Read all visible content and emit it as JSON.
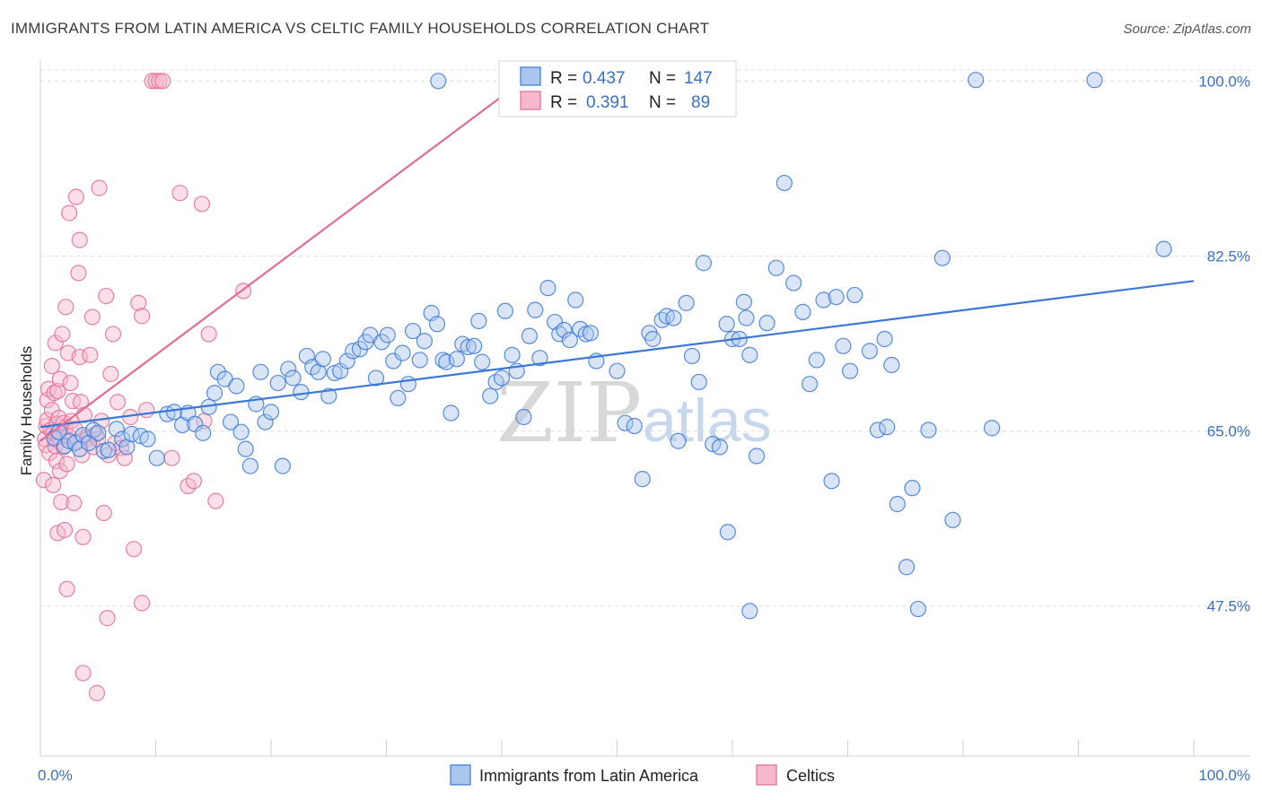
{
  "title": "IMMIGRANTS FROM LATIN AMERICA VS CELTIC FAMILY HOUSEHOLDS CORRELATION CHART",
  "source": "Source: ZipAtlas.com",
  "watermark": {
    "part1": "ZIP",
    "part2": "atlas"
  },
  "colors": {
    "blue": "#3b78d6",
    "blue_fill": "#aac6ee",
    "pink": "#e06c96",
    "pink_fill": "#f6b8cc",
    "tick": "#3b6fc6",
    "grid": "#dddddd"
  },
  "legend": {
    "rows": [
      {
        "r_label": "R =",
        "r_value": "0.437",
        "n_label": "N =",
        "n_value": "147"
      },
      {
        "r_label": "R =",
        "r_value": "0.391",
        "n_label": "N =",
        "n_value": "89"
      }
    ]
  },
  "bottom_legend": [
    "Immigrants from Latin America",
    "Celtics"
  ],
  "chart_data": {
    "type": "scatter",
    "title": "IMMIGRANTS FROM LATIN AMERICA VS CELTIC FAMILY HOUSEHOLDS CORRELATION CHART",
    "xlabel": "",
    "ylabel": "Family Households",
    "xlim": [
      0,
      100
    ],
    "ylim": [
      32.5,
      102
    ],
    "x_tick_labels": [
      "0.0%",
      "100.0%"
    ],
    "y_ticks": [
      47.5,
      65.0,
      82.5,
      100.0
    ],
    "y_tick_labels": [
      "47.5%",
      "65.0%",
      "82.5%",
      "100.0%"
    ],
    "grid": true,
    "legend_position": "top-center",
    "series": [
      {
        "name": "Immigrants from Latin America",
        "color": "#3b78d6",
        "trend": {
          "x0": 0,
          "y0": 65.4,
          "x1": 100,
          "y1": 80.0
        },
        "points": [
          [
            1.2,
            64.3
          ],
          [
            1.6,
            64.9
          ],
          [
            2.1,
            63.5
          ],
          [
            2.5,
            64.0
          ],
          [
            3.0,
            63.8
          ],
          [
            3.4,
            63.2
          ],
          [
            3.7,
            64.6
          ],
          [
            4.2,
            63.8
          ],
          [
            4.6,
            65.1
          ],
          [
            5.0,
            64.8
          ],
          [
            5.5,
            63.0
          ],
          [
            5.9,
            63.1
          ],
          [
            6.6,
            65.2
          ],
          [
            7.1,
            64.2
          ],
          [
            7.5,
            63.4
          ],
          [
            7.9,
            64.7
          ],
          [
            8.7,
            64.5
          ],
          [
            9.3,
            64.2
          ],
          [
            10.1,
            62.3
          ],
          [
            11.0,
            66.7
          ],
          [
            11.6,
            66.9
          ],
          [
            12.3,
            65.6
          ],
          [
            12.8,
            66.8
          ],
          [
            13.4,
            65.7
          ],
          [
            14.1,
            64.8
          ],
          [
            14.6,
            67.4
          ],
          [
            15.1,
            68.8
          ],
          [
            15.4,
            70.9
          ],
          [
            16.0,
            70.2
          ],
          [
            16.5,
            65.9
          ],
          [
            17.0,
            69.5
          ],
          [
            17.4,
            64.9
          ],
          [
            17.8,
            63.2
          ],
          [
            18.2,
            61.5
          ],
          [
            18.7,
            67.7
          ],
          [
            19.1,
            70.9
          ],
          [
            19.5,
            65.9
          ],
          [
            20.0,
            66.9
          ],
          [
            20.6,
            69.8
          ],
          [
            21.0,
            61.5
          ],
          [
            21.5,
            71.2
          ],
          [
            21.9,
            70.3
          ],
          [
            22.6,
            68.9
          ],
          [
            23.1,
            72.5
          ],
          [
            23.6,
            71.4
          ],
          [
            24.1,
            70.9
          ],
          [
            24.5,
            72.2
          ],
          [
            25.0,
            68.5
          ],
          [
            25.5,
            70.8
          ],
          [
            26.0,
            71.0
          ],
          [
            26.6,
            72.0
          ],
          [
            27.1,
            73.0
          ],
          [
            27.7,
            73.2
          ],
          [
            28.2,
            73.9
          ],
          [
            28.6,
            74.6
          ],
          [
            29.1,
            70.3
          ],
          [
            29.6,
            73.9
          ],
          [
            30.1,
            74.6
          ],
          [
            30.6,
            72.0
          ],
          [
            31.0,
            68.3
          ],
          [
            31.4,
            72.8
          ],
          [
            31.9,
            69.7
          ],
          [
            32.3,
            75.0
          ],
          [
            32.9,
            72.1
          ],
          [
            33.3,
            74.0
          ],
          [
            33.9,
            76.8
          ],
          [
            34.4,
            75.7
          ],
          [
            34.9,
            72.1
          ],
          [
            35.2,
            71.9
          ],
          [
            35.6,
            66.8
          ],
          [
            36.1,
            72.2
          ],
          [
            36.6,
            73.7
          ],
          [
            37.1,
            73.4
          ],
          [
            37.6,
            73.5
          ],
          [
            38.0,
            76.0
          ],
          [
            38.3,
            71.9
          ],
          [
            39.0,
            68.5
          ],
          [
            39.5,
            69.9
          ],
          [
            40.0,
            70.3
          ],
          [
            40.3,
            77.0
          ],
          [
            40.9,
            72.6
          ],
          [
            41.3,
            71.0
          ],
          [
            41.9,
            66.4
          ],
          [
            42.4,
            74.5
          ],
          [
            42.9,
            77.1
          ],
          [
            43.3,
            72.3
          ],
          [
            44.0,
            79.3
          ],
          [
            44.6,
            75.9
          ],
          [
            45.0,
            74.7
          ],
          [
            45.4,
            75.1
          ],
          [
            45.9,
            74.1
          ],
          [
            46.4,
            78.1
          ],
          [
            46.8,
            75.2
          ],
          [
            47.3,
            74.7
          ],
          [
            47.7,
            74.8
          ],
          [
            48.2,
            72.0
          ],
          [
            50.0,
            71.0
          ],
          [
            50.7,
            65.8
          ],
          [
            51.5,
            65.5
          ],
          [
            52.2,
            60.2
          ],
          [
            52.8,
            74.8
          ],
          [
            53.1,
            74.2
          ],
          [
            53.9,
            76.1
          ],
          [
            54.3,
            76.5
          ],
          [
            54.9,
            76.3
          ],
          [
            55.3,
            64.0
          ],
          [
            56.0,
            77.8
          ],
          [
            56.5,
            72.5
          ],
          [
            57.1,
            69.9
          ],
          [
            57.5,
            81.8
          ],
          [
            58.3,
            63.7
          ],
          [
            58.9,
            63.4
          ],
          [
            59.5,
            75.7
          ],
          [
            60.0,
            74.2
          ],
          [
            60.6,
            74.2
          ],
          [
            61.0,
            77.9
          ],
          [
            61.2,
            76.3
          ],
          [
            61.5,
            72.6
          ],
          [
            62.1,
            62.5
          ],
          [
            63.0,
            75.8
          ],
          [
            63.8,
            81.3
          ],
          [
            64.5,
            89.8
          ],
          [
            65.3,
            79.8
          ],
          [
            66.1,
            76.9
          ],
          [
            66.7,
            69.7
          ],
          [
            67.3,
            72.1
          ],
          [
            67.9,
            78.1
          ],
          [
            68.6,
            60.0
          ],
          [
            69.0,
            78.4
          ],
          [
            69.6,
            73.5
          ],
          [
            70.2,
            71.0
          ],
          [
            70.6,
            78.6
          ],
          [
            71.9,
            73.0
          ],
          [
            72.6,
            65.1
          ],
          [
            73.2,
            74.2
          ],
          [
            73.4,
            65.4
          ],
          [
            73.8,
            71.6
          ],
          [
            74.3,
            57.7
          ],
          [
            75.1,
            51.4
          ],
          [
            75.6,
            59.3
          ],
          [
            76.1,
            47.2
          ],
          [
            77.0,
            65.1
          ],
          [
            78.2,
            82.3
          ],
          [
            79.1,
            56.1
          ],
          [
            81.1,
            100.1
          ],
          [
            82.5,
            65.3
          ],
          [
            91.4,
            100.1
          ],
          [
            97.4,
            83.2
          ],
          [
            59.6,
            54.9
          ],
          [
            61.5,
            47.0
          ],
          [
            34.5,
            100.0
          ]
        ]
      },
      {
        "name": "Celtics",
        "color": "#e06c96",
        "trend": {
          "x0": 0,
          "y0": 64.0,
          "x1": 42.5,
          "y1": 100.6
        },
        "points": [
          [
            0.3,
            60.1
          ],
          [
            0.4,
            64.2
          ],
          [
            0.5,
            65.5
          ],
          [
            0.5,
            63.6
          ],
          [
            0.6,
            68.1
          ],
          [
            0.6,
            66.1
          ],
          [
            0.7,
            69.2
          ],
          [
            0.8,
            62.8
          ],
          [
            0.9,
            65.1
          ],
          [
            1.0,
            71.5
          ],
          [
            1.0,
            67.1
          ],
          [
            1.1,
            64.8
          ],
          [
            1.1,
            59.6
          ],
          [
            1.2,
            68.8
          ],
          [
            1.3,
            63.5
          ],
          [
            1.3,
            73.8
          ],
          [
            1.4,
            65.7
          ],
          [
            1.4,
            62.0
          ],
          [
            1.5,
            69.0
          ],
          [
            1.5,
            54.8
          ],
          [
            1.6,
            66.3
          ],
          [
            1.6,
            64.4
          ],
          [
            1.7,
            70.2
          ],
          [
            1.7,
            61.0
          ],
          [
            1.8,
            57.9
          ],
          [
            1.9,
            74.7
          ],
          [
            2.0,
            65.8
          ],
          [
            2.0,
            63.4
          ],
          [
            2.1,
            55.1
          ],
          [
            2.2,
            77.4
          ],
          [
            2.2,
            65.4
          ],
          [
            2.3,
            61.7
          ],
          [
            2.4,
            72.8
          ],
          [
            2.4,
            64.5
          ],
          [
            2.5,
            86.8
          ],
          [
            2.6,
            69.8
          ],
          [
            2.7,
            66.0
          ],
          [
            2.8,
            68.0
          ],
          [
            2.9,
            57.8
          ],
          [
            3.0,
            65.2
          ],
          [
            3.1,
            88.4
          ],
          [
            3.2,
            63.9
          ],
          [
            3.3,
            80.8
          ],
          [
            3.4,
            84.1
          ],
          [
            3.4,
            72.4
          ],
          [
            3.5,
            67.9
          ],
          [
            3.6,
            62.6
          ],
          [
            3.7,
            54.4
          ],
          [
            3.8,
            66.6
          ],
          [
            4.0,
            64.4
          ],
          [
            4.1,
            64.2
          ],
          [
            4.3,
            72.6
          ],
          [
            4.5,
            76.4
          ],
          [
            4.6,
            63.4
          ],
          [
            4.8,
            64.7
          ],
          [
            5.0,
            64.2
          ],
          [
            5.1,
            89.3
          ],
          [
            5.3,
            66.0
          ],
          [
            5.5,
            56.8
          ],
          [
            5.7,
            78.5
          ],
          [
            5.9,
            62.6
          ],
          [
            6.1,
            70.7
          ],
          [
            6.3,
            74.7
          ],
          [
            6.5,
            63.8
          ],
          [
            6.7,
            67.9
          ],
          [
            7.0,
            63.3
          ],
          [
            7.3,
            62.3
          ],
          [
            7.8,
            66.4
          ],
          [
            8.1,
            53.2
          ],
          [
            8.5,
            77.8
          ],
          [
            8.8,
            76.5
          ],
          [
            9.2,
            67.1
          ],
          [
            9.7,
            100.0
          ],
          [
            10.0,
            100.0
          ],
          [
            10.3,
            100.0
          ],
          [
            10.6,
            100.0
          ],
          [
            11.4,
            62.3
          ],
          [
            12.1,
            88.8
          ],
          [
            12.8,
            59.5
          ],
          [
            13.3,
            60.0
          ],
          [
            14.0,
            87.7
          ],
          [
            14.2,
            66.0
          ],
          [
            14.6,
            74.7
          ],
          [
            15.2,
            58.0
          ],
          [
            17.6,
            79.0
          ],
          [
            3.7,
            40.8
          ],
          [
            4.9,
            38.8
          ],
          [
            5.8,
            46.3
          ],
          [
            2.3,
            49.2
          ],
          [
            8.8,
            47.8
          ]
        ]
      }
    ]
  }
}
